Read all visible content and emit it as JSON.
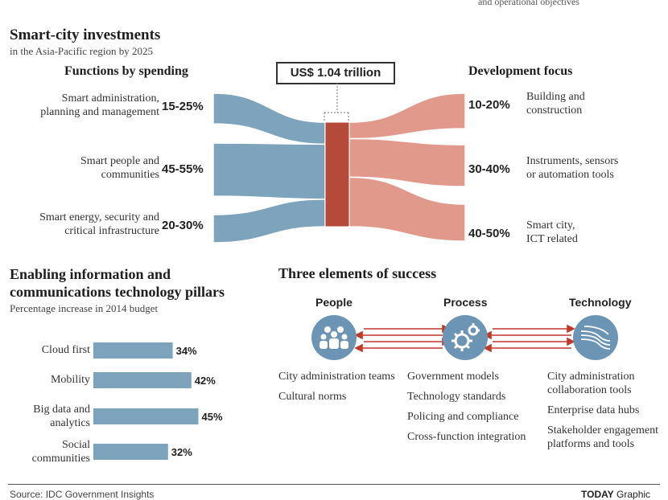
{
  "top_fragments": {
    "right": "and operational objectives"
  },
  "investments": {
    "title": "Smart-city investments",
    "subtitle": "in the Asia-Pacific region by 2025",
    "total": "US$ 1.04 trillion",
    "left_heading": "Functions by spending",
    "right_heading": "Development focus"
  },
  "pillars": {
    "title_line1": "Enabling information and",
    "title_line2": "communications technology pillars",
    "subtitle": "Percentage increase in 2014 budget"
  },
  "success": {
    "title": "Three elements of success",
    "columns": [
      {
        "heading": "People",
        "icon": "people-icon",
        "items": [
          "City administration teams",
          "Cultural norms"
        ]
      },
      {
        "heading": "Process",
        "icon": "gears-icon",
        "items": [
          "Government models",
          "Technology standards",
          "Policing and compliance",
          "Cross-function integration"
        ]
      },
      {
        "heading": "Technology",
        "icon": "signal-waves-icon",
        "items": [
          "City administration collaboration tools",
          "Enterprise data hubs",
          "Stakeholder engagement platforms and tools"
        ]
      }
    ]
  },
  "footer": {
    "source": "Source: IDC Government Insights",
    "credit_bold": "TODAY",
    "credit_rest": " Graphic"
  },
  "colors": {
    "blue": "#7ea3bd",
    "salmon": "#e0998a",
    "red": "#b54a3b",
    "arrow": "#c0392b",
    "circle": "#6c95b5"
  },
  "chart_data": [
    {
      "type": "sankey",
      "title": "Smart-city investments",
      "subtitle": "in the Asia-Pacific region by 2025",
      "total": "US$ 1.04 trillion",
      "sources_heading": "Functions by spending",
      "targets_heading": "Development focus",
      "sources": [
        {
          "label": "Smart administration, planning and management",
          "range": "15-25%",
          "min": 15,
          "max": 25
        },
        {
          "label": "Smart people and communities",
          "range": "45-55%",
          "min": 45,
          "max": 55
        },
        {
          "label": "Smart energy, security and critical infrastructure",
          "range": "20-30%",
          "min": 20,
          "max": 30
        }
      ],
      "targets": [
        {
          "label": "Building and construction",
          "range": "10-20%",
          "min": 10,
          "max": 20
        },
        {
          "label": "Instruments, sensors or automation tools",
          "range": "30-40%",
          "min": 30,
          "max": 40
        },
        {
          "label": "Smart city, ICT related",
          "range": "40-50%",
          "min": 40,
          "max": 50
        }
      ]
    },
    {
      "type": "bar",
      "orientation": "horizontal",
      "title": "Enabling information and communications technology pillars",
      "subtitle": "Percentage increase in 2014 budget",
      "categories": [
        "Cloud first",
        "Mobility",
        "Big data and analytics",
        "Social communities"
      ],
      "values": [
        34,
        42,
        45,
        32
      ],
      "value_labels": [
        "34%",
        "42%",
        "45%",
        "32%"
      ]
    }
  ]
}
